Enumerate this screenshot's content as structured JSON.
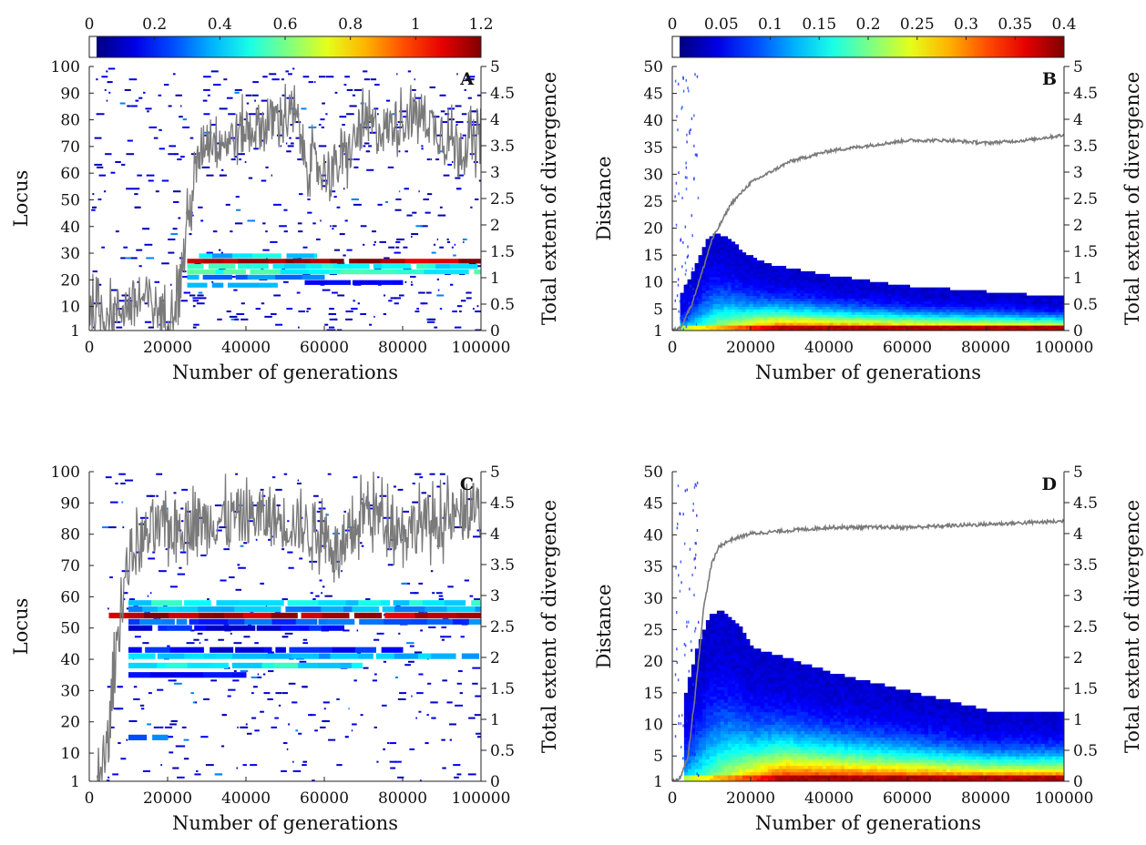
{
  "chart_data": [
    {
      "panel": "A",
      "type": "heatmap",
      "xlabel": "Number of generations",
      "ylabel": "Locus",
      "y2label": "Total extent of divergence",
      "xlim": [
        0,
        100000
      ],
      "ylim": [
        1,
        100
      ],
      "y2lim": [
        0,
        5
      ],
      "xticks": [
        "0",
        "20000",
        "40000",
        "60000",
        "80000",
        "100000"
      ],
      "yticks": [
        "1",
        "10",
        "20",
        "30",
        "40",
        "50",
        "60",
        "70",
        "80",
        "90",
        "100"
      ],
      "y2ticks": [
        "0",
        "0.5",
        "1",
        "1.5",
        "2",
        "2.5",
        "3",
        "3.5",
        "4",
        "4.5",
        "5"
      ],
      "colorbar": {
        "range": [
          0,
          1.2
        ],
        "ticks": [
          "0",
          "0.2",
          "0.4",
          "0.6",
          "0.8",
          "1",
          "1.2"
        ]
      },
      "bands": [
        {
          "locus": 27,
          "x_start": 25000,
          "x_end": 100000,
          "value": 1.15
        },
        {
          "locus": 25,
          "x_start": 25000,
          "x_end": 100000,
          "value": 0.45
        },
        {
          "locus": 23,
          "x_start": 25000,
          "x_end": 100000,
          "value": 0.5
        },
        {
          "locus": 21,
          "x_start": 25000,
          "x_end": 60000,
          "value": 0.3
        },
        {
          "locus": 29,
          "x_start": 28000,
          "x_end": 58000,
          "value": 0.4
        },
        {
          "locus": 18,
          "x_start": 25000,
          "x_end": 48000,
          "value": 0.35
        },
        {
          "locus": 19,
          "x_start": 55000,
          "x_end": 80000,
          "value": 0.15
        }
      ],
      "divergence_series": {
        "name": "Total extent of divergence",
        "x": [
          0,
          5000,
          10000,
          15000,
          20000,
          23000,
          25000,
          28000,
          30000,
          35000,
          40000,
          45000,
          50000,
          53000,
          55000,
          60000,
          65000,
          70000,
          75000,
          80000,
          85000,
          90000,
          95000,
          100000
        ],
        "y": [
          0.4,
          0.3,
          0.5,
          0.6,
          0.2,
          0.8,
          2.0,
          3.3,
          3.7,
          3.6,
          3.8,
          3.9,
          4.1,
          4.0,
          3.3,
          3.0,
          3.2,
          3.9,
          3.8,
          4.0,
          4.1,
          3.7,
          3.5,
          3.6
        ]
      }
    },
    {
      "panel": "B",
      "type": "heatmap",
      "xlabel": "Number of generations",
      "ylabel": "Distance",
      "y2label": "Total extent of divergence",
      "xlim": [
        0,
        100000
      ],
      "ylim": [
        1,
        50
      ],
      "y2lim": [
        0,
        5
      ],
      "xticks": [
        "0",
        "20000",
        "40000",
        "60000",
        "80000",
        "100000"
      ],
      "yticks": [
        "1",
        "5",
        "10",
        "15",
        "20",
        "25",
        "30",
        "35",
        "40",
        "45",
        "50"
      ],
      "y2ticks": [
        "0",
        "0.5",
        "1",
        "1.5",
        "2",
        "2.5",
        "3",
        "3.5",
        "4",
        "4.5",
        "5"
      ],
      "colorbar": {
        "range": [
          0,
          0.4
        ],
        "ticks": [
          "0",
          "0.05",
          "0.1",
          "0.15",
          "0.2",
          "0.25",
          "0.3",
          "0.35",
          "0.4"
        ]
      },
      "envelope": {
        "x": [
          2000,
          5000,
          8000,
          10000,
          14000,
          18000,
          25000,
          40000,
          60000,
          80000,
          100000
        ],
        "max_distance": [
          8,
          12,
          17,
          19,
          18,
          15,
          13,
          11,
          9,
          8,
          7
        ]
      },
      "divergence_series": {
        "name": "Total extent of divergence",
        "x": [
          0,
          2000,
          5000,
          8000,
          10000,
          15000,
          20000,
          25000,
          30000,
          40000,
          50000,
          60000,
          70000,
          80000,
          90000,
          100000
        ],
        "y": [
          0,
          0.05,
          0.5,
          1.2,
          1.7,
          2.4,
          2.8,
          3.0,
          3.2,
          3.4,
          3.5,
          3.6,
          3.6,
          3.55,
          3.6,
          3.7
        ]
      }
    },
    {
      "panel": "C",
      "type": "heatmap",
      "xlabel": "Number of generations",
      "ylabel": "Locus",
      "y2label": "Total extent of divergence",
      "xlim": [
        0,
        100000
      ],
      "ylim": [
        1,
        100
      ],
      "y2lim": [
        0,
        5
      ],
      "xticks": [
        "0",
        "20000",
        "40000",
        "60000",
        "80000",
        "100000"
      ],
      "yticks": [
        "1",
        "10",
        "20",
        "30",
        "40",
        "50",
        "60",
        "70",
        "80",
        "90",
        "100"
      ],
      "y2ticks": [
        "0",
        "0.5",
        "1",
        "1.5",
        "2",
        "2.5",
        "3",
        "3.5",
        "4",
        "4.5",
        "5"
      ],
      "bands": [
        {
          "locus": 54,
          "x_start": 5000,
          "x_end": 100000,
          "value": 1.15
        },
        {
          "locus": 58,
          "x_start": 10000,
          "x_end": 100000,
          "value": 0.45
        },
        {
          "locus": 56,
          "x_start": 10000,
          "x_end": 100000,
          "value": 0.35
        },
        {
          "locus": 52,
          "x_start": 10000,
          "x_end": 100000,
          "value": 0.25
        },
        {
          "locus": 50,
          "x_start": 10000,
          "x_end": 65000,
          "value": 0.15
        },
        {
          "locus": 43,
          "x_start": 10000,
          "x_end": 80000,
          "value": 0.15
        },
        {
          "locus": 41,
          "x_start": 10000,
          "x_end": 100000,
          "value": 0.35
        },
        {
          "locus": 38,
          "x_start": 10000,
          "x_end": 70000,
          "value": 0.45
        },
        {
          "locus": 35,
          "x_start": 10000,
          "x_end": 40000,
          "value": 0.15
        },
        {
          "locus": 15,
          "x_start": 10000,
          "x_end": 20000,
          "value": 0.25
        }
      ],
      "divergence_series": {
        "name": "Total extent of divergence",
        "x": [
          2000,
          4000,
          5000,
          6000,
          7000,
          8000,
          10000,
          15000,
          20000,
          30000,
          40000,
          50000,
          60000,
          65000,
          70000,
          80000,
          90000,
          100000
        ],
        "y": [
          0.1,
          0.3,
          0.8,
          1.5,
          2.2,
          2.8,
          3.6,
          4.0,
          4.1,
          4.2,
          4.3,
          4.2,
          4.0,
          3.6,
          4.4,
          4.1,
          4.2,
          4.4
        ]
      }
    },
    {
      "panel": "D",
      "type": "heatmap",
      "xlabel": "Number of generations",
      "ylabel": "Distance",
      "y2label": "Total extent of divergence",
      "xlim": [
        0,
        100000
      ],
      "ylim": [
        1,
        50
      ],
      "y2lim": [
        0,
        5
      ],
      "xticks": [
        "0",
        "20000",
        "40000",
        "60000",
        "80000",
        "100000"
      ],
      "yticks": [
        "1",
        "5",
        "10",
        "15",
        "20",
        "25",
        "30",
        "35",
        "40",
        "45",
        "50"
      ],
      "y2ticks": [
        "0",
        "0.5",
        "1",
        "1.5",
        "2",
        "2.5",
        "3",
        "3.5",
        "4",
        "4.5",
        "5"
      ],
      "envelope": {
        "x": [
          3000,
          6000,
          9000,
          12000,
          16000,
          20000,
          30000,
          40000,
          60000,
          80000,
          100000
        ],
        "max_distance": [
          15,
          22,
          27,
          28,
          26,
          22,
          20,
          18,
          15,
          12,
          12
        ]
      },
      "divergence_series": {
        "name": "Total extent of divergence",
        "x": [
          0,
          2000,
          4000,
          6000,
          8000,
          10000,
          12000,
          15000,
          20000,
          30000,
          40000,
          60000,
          80000,
          100000
        ],
        "y": [
          0,
          0.05,
          0.4,
          1.5,
          2.8,
          3.5,
          3.8,
          3.9,
          4.0,
          4.05,
          4.1,
          4.1,
          4.15,
          4.2
        ]
      }
    }
  ]
}
